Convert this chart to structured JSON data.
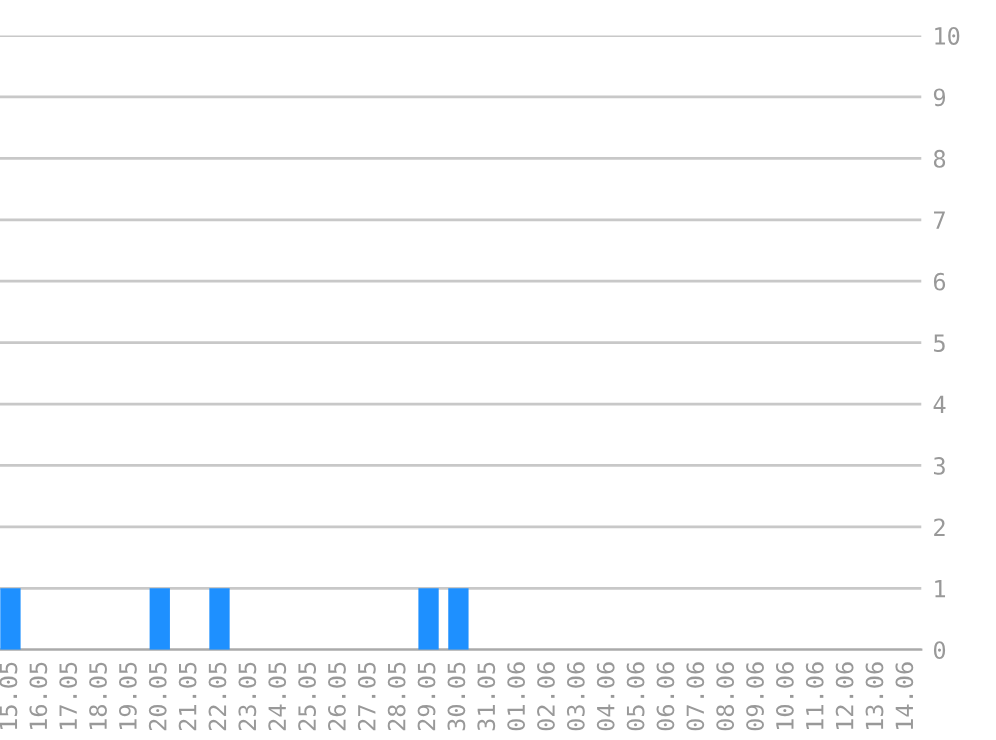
{
  "chart_data": {
    "type": "bar",
    "categories": [
      "15.05",
      "16.05",
      "17.05",
      "18.05",
      "19.05",
      "20.05",
      "21.05",
      "22.05",
      "23.05",
      "24.05",
      "25.05",
      "26.05",
      "27.05",
      "28.05",
      "29.05",
      "30.05",
      "31.05",
      "01.06",
      "02.06",
      "03.06",
      "04.06",
      "05.06",
      "06.06",
      "07.06",
      "08.06",
      "09.06",
      "10.06",
      "11.06",
      "12.06",
      "13.06",
      "14.06"
    ],
    "values": [
      1,
      0,
      0,
      0,
      0,
      1,
      0,
      1,
      0,
      0,
      0,
      0,
      0,
      0,
      1,
      1,
      0,
      0,
      0,
      0,
      0,
      0,
      0,
      0,
      0,
      0,
      0,
      0,
      0,
      0,
      0
    ],
    "color": "#1e90ff",
    "ylim": [
      0,
      10
    ],
    "yticks": [
      0,
      1,
      2,
      3,
      4,
      5,
      6,
      7,
      8,
      9,
      10
    ],
    "grid": "y"
  }
}
